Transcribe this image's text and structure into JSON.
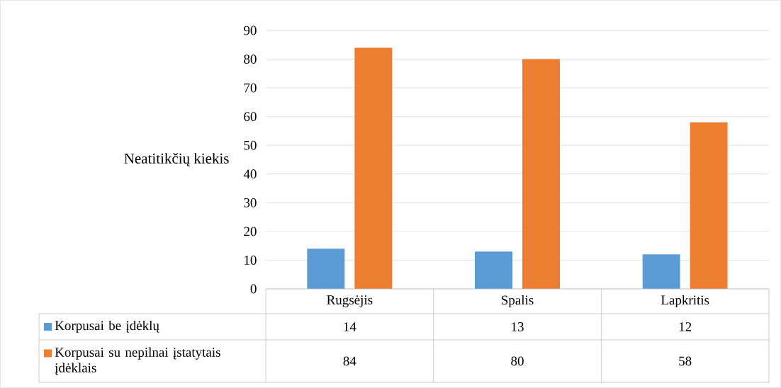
{
  "chart_data": {
    "type": "bar",
    "ylabel": "Neatitikčių kiekis",
    "categories": [
      "Rugsėjis",
      "Spalis",
      "Lapkritis"
    ],
    "series": [
      {
        "name": "Korpusai be įdėklų",
        "color": "#5b9bd5",
        "values": [
          14,
          13,
          12
        ]
      },
      {
        "name": "Korpusai su nepilnai įstatytais įdėklais",
        "color": "#ed7d31",
        "values": [
          84,
          80,
          58
        ]
      }
    ],
    "ylim": [
      0,
      90
    ],
    "yticks": [
      0,
      10,
      20,
      30,
      40,
      50,
      60,
      70,
      80,
      90
    ],
    "grid": "y",
    "legend": "bottom",
    "data_labels": true
  }
}
